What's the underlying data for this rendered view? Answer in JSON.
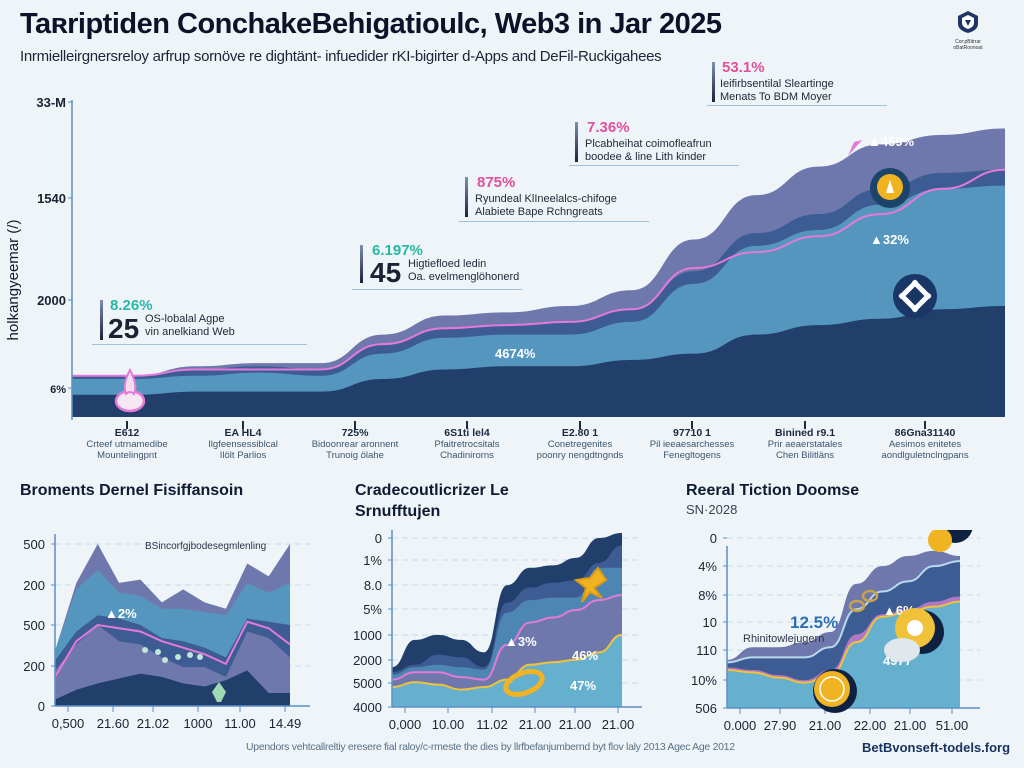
{
  "header": {
    "title": "Taʀriptiden ConchakeBehigatioulc, Web3 in Jar 2025",
    "subtitle": "Inrmielleirgnersreloy arfrup sornöve re dightänt- infuedider rKI-bigirter d-Apps and DeFil-Ruckigahees",
    "logo_icon": "shield-logo-icon",
    "logo_text_line1": "Cor:pBitrrar",
    "logo_text_line2": "oBatRoonoat"
  },
  "colors": {
    "navy": "#223f6c",
    "mid_blue": "#5596bf",
    "indigo": "#3d5c94",
    "purple": "#6f78ad",
    "pink_line": "#e47ad8",
    "yellow_line": "#f0c23a",
    "teal_text": "#27b8a6",
    "pink_text": "#e0509b"
  },
  "callouts": [
    {
      "pct": "8.26%",
      "pct_color": "#27b8a6",
      "big": "25",
      "line1": "OS-lobalal Agpe",
      "line2": "vin anelkiand Web"
    },
    {
      "pct": "6.197%",
      "pct_color": "#27b8a6",
      "big": "45",
      "line1": "Higtiefloed ledin",
      "line2": "Oa. evelmenglöhonerd"
    },
    {
      "pct": "875%",
      "pct_color": "#e0509b",
      "big": "",
      "line1": "Ryundeal KlIneelalcs-chifoge",
      "line2": "Alabiete Bape Rchngreats"
    },
    {
      "pct": "7.36%",
      "pct_color": "#e0509b",
      "big": "",
      "line1": "Plcabheihat coimofleafrun",
      "line2": "boodee & line Lith kinder"
    },
    {
      "pct": "53.1%",
      "pct_color": "#e0509b",
      "big": "",
      "line1": "Ieifirbsentilal Sleartinge",
      "line2": "Menats To BDM Moyer"
    }
  ],
  "chart_data": [
    {
      "type": "area",
      "title": "",
      "ylabel": "holkangyeemar (/)",
      "ytick_labels": [
        "33-M",
        "1540",
        "2000",
        "6%"
      ],
      "ylim": [
        0,
        100
      ],
      "grid": false,
      "x": [
        0,
        1,
        2,
        3,
        4,
        5,
        6,
        7,
        8,
        9,
        10,
        11,
        12,
        13,
        14,
        15
      ],
      "xtick_labels": [
        {
          "key": "E612",
          "line1": "Crteef utrnamedibe",
          "line2": "Mountelingpnt"
        },
        {
          "key": "EA HL4",
          "line1": "Ilgfeensessiblcal",
          "line2": "Ilölt Parlios"
        },
        {
          "key": "725%",
          "line1": "Bidoonrear aronnent",
          "line2": "Trunoig ölahe"
        },
        {
          "key": "6S1ti lel4",
          "line1": "Pfaitretrocsitals",
          "line2": "Chadinirorns"
        },
        {
          "key": "E2.80 1",
          "line1": "Conetregenites",
          "line2": "poonry nengdtngnds"
        },
        {
          "key": "97710 1",
          "line1": "Pil ieeaesarchesses",
          "line2": "Fenegltogens"
        },
        {
          "key": "Binined r9.1",
          "line1": "Prir aeaerstatales",
          "line2": "Chen Bilitläns"
        },
        {
          "key": "86Gna31140",
          "line1": "Aesimos enitetes",
          "line2": "aondlguletnclngpans"
        }
      ],
      "series": [
        {
          "name": "base",
          "color": "#223f6c",
          "values": [
            7,
            7,
            8,
            8,
            8,
            12,
            15,
            16,
            16,
            18,
            20,
            26,
            29,
            31,
            34,
            35
          ]
        },
        {
          "name": "mid",
          "color": "#5596bf",
          "values": [
            5,
            5,
            5,
            6,
            5,
            8,
            10,
            10,
            10,
            12,
            22,
            28,
            30,
            36,
            38,
            38
          ]
        },
        {
          "name": "indigo",
          "color": "#3d5c94",
          "values": [
            1,
            1,
            2,
            2,
            2,
            3,
            3,
            3,
            4,
            4,
            4,
            4,
            5,
            5,
            5,
            5
          ]
        },
        {
          "name": "top",
          "color": "#6f78ad",
          "values": [
            0,
            0,
            1,
            1,
            2,
            3,
            4,
            4,
            5,
            6,
            10,
            12,
            15,
            14,
            12,
            13
          ]
        }
      ],
      "trend_line": {
        "name": "pink-trend",
        "color": "#e47ad8",
        "values": [
          13,
          13,
          15,
          15,
          15,
          23,
          28,
          29,
          30,
          34,
          47,
          52,
          57,
          64,
          72,
          78
        ]
      },
      "annotations": [
        "4674%",
        "▲459%",
        "▲32%"
      ]
    },
    {
      "type": "area",
      "title": "Broments Dernel Fisiffansoin",
      "ytick_labels": [
        "0",
        "200",
        "500",
        "200",
        "500"
      ],
      "ylim": [
        0,
        500
      ],
      "xtick_labels": [
        "0,500",
        "21.60",
        "21.02",
        "1000",
        "11.00",
        "14.49"
      ],
      "grid": true,
      "legend_note": "BSincorfgjbodesegmlenling",
      "series": [
        {
          "name": "navy",
          "color": "#223f6c",
          "values": [
            20,
            50,
            70,
            85,
            100,
            90,
            70,
            60,
            80,
            110,
            40,
            40
          ]
        },
        {
          "name": "purple",
          "color": "#6f78ad",
          "values": [
            110,
            190,
            250,
            200,
            190,
            150,
            120,
            120,
            90,
            230,
            210,
            150
          ]
        },
        {
          "name": "indigo",
          "color": "#3d5c94",
          "values": [
            140,
            230,
            280,
            270,
            250,
            210,
            200,
            180,
            150,
            270,
            260,
            250
          ]
        },
        {
          "name": "blue",
          "color": "#5596bf",
          "values": [
            170,
            360,
            420,
            350,
            340,
            300,
            300,
            290,
            280,
            380,
            350,
            380
          ]
        },
        {
          "name": "top",
          "color": "#6f78ad",
          "values": [
            170,
            380,
            500,
            380,
            390,
            320,
            360,
            320,
            300,
            440,
            400,
            500
          ]
        }
      ],
      "line": {
        "name": "pink",
        "color": "#e47ad8",
        "values": [
          90,
          200,
          250,
          240,
          230,
          200,
          180,
          160,
          130,
          260,
          240,
          190
        ]
      },
      "annotations": [
        "▲2%"
      ]
    },
    {
      "type": "area",
      "title": "Cradecoutlicrizer Le Srnufftujen",
      "ytick_labels": [
        "0",
        "1%",
        "8.0",
        "5%",
        "1000",
        "2000",
        "5000",
        "4000"
      ],
      "ylim": [
        0,
        7
      ],
      "xtick_labels": [
        "0,000",
        "10.00",
        "11.02",
        "21.00",
        "21.00",
        "21.00"
      ],
      "grid": true,
      "series": [
        {
          "name": "teal",
          "color": "#66b0cf",
          "values": [
            0.8,
            1.0,
            0.9,
            0.7,
            0.8,
            1.1,
            1.7,
            1.8,
            1.9,
            2.2,
            2.9
          ]
        },
        {
          "name": "purple",
          "color": "#6f78ad",
          "values": [
            1.1,
            1.4,
            1.4,
            1.2,
            1.1,
            2.5,
            3.4,
            3.6,
            3.9,
            4.3,
            4.5
          ]
        },
        {
          "name": "blue",
          "color": "#4d86b3",
          "values": [
            1.3,
            1.6,
            1.7,
            1.6,
            1.5,
            3.8,
            4.3,
            4.4,
            4.4,
            5.6,
            5.6
          ]
        },
        {
          "name": "indigo",
          "color": "#3d5c94",
          "values": [
            1.4,
            1.7,
            2.1,
            2.0,
            1.6,
            4.2,
            4.8,
            5.0,
            5.1,
            5.8,
            6.5
          ]
        },
        {
          "name": "navy",
          "color": "#223f6c",
          "values": [
            1.6,
            2.7,
            2.9,
            2.7,
            2.2,
            4.9,
            5.6,
            5.7,
            6.0,
            6.8,
            7.0
          ]
        }
      ],
      "lines": [
        {
          "name": "yellow",
          "color": "#f0c23a",
          "values": [
            0.8,
            1.0,
            0.9,
            0.7,
            0.8,
            1.1,
            1.7,
            1.8,
            1.9,
            2.2,
            2.9
          ]
        },
        {
          "name": "pink",
          "color": "#e47ad8",
          "values": [
            1.1,
            1.4,
            1.4,
            1.2,
            1.1,
            2.5,
            3.4,
            3.6,
            3.9,
            4.3,
            4.5
          ]
        }
      ],
      "annotations": [
        "▲3%",
        "46%",
        "47%"
      ]
    },
    {
      "type": "area",
      "title": "Reeral Tiction Doomse",
      "subtitle": "SN·2028",
      "ytick_labels": [
        "0",
        "4%",
        "8%",
        "10",
        "110",
        "10%",
        "506"
      ],
      "ylim": [
        0,
        6
      ],
      "xtick_labels": [
        "0,000",
        "27.90",
        "21.00",
        "22.00",
        "21.00",
        "51.00"
      ],
      "grid": true,
      "series": [
        {
          "name": "teal",
          "color": "#66b0cf",
          "values": [
            1.5,
            1.4,
            1.2,
            1.0,
            1.3,
            2.6,
            3.6,
            3.8,
            4.0,
            4.2
          ]
        },
        {
          "name": "pink-band",
          "color": "#b077c7",
          "values": [
            1.6,
            1.5,
            1.3,
            1.1,
            1.5,
            2.9,
            3.7,
            3.9,
            4.2,
            4.4
          ]
        },
        {
          "name": "blue",
          "color": "#3d5c94",
          "values": [
            1.8,
            2.0,
            2.0,
            2.0,
            2.4,
            3.9,
            4.6,
            5.0,
            5.6,
            5.8
          ]
        },
        {
          "name": "purple",
          "color": "#6f78ad",
          "values": [
            1.9,
            2.4,
            2.4,
            2.6,
            3.0,
            4.9,
            5.6,
            6.0,
            6.2,
            6.0
          ]
        }
      ],
      "lines": [
        {
          "name": "yellow",
          "color": "#f0c23a",
          "values": [
            1.5,
            1.4,
            1.2,
            1.0,
            1.3,
            2.6,
            3.6,
            3.8,
            4.0,
            4.2
          ]
        },
        {
          "name": "light",
          "color": "#b9d9ec",
          "values": [
            1.8,
            2.0,
            2.0,
            2.0,
            2.4,
            3.9,
            4.6,
            5.0,
            5.6,
            5.8
          ]
        }
      ],
      "annotations": [
        "12.5%",
        "Rhinitowlejugern",
        "▲6%",
        "4977"
      ]
    }
  ],
  "footer": {
    "note": "Upendors vehtcallreltiy eresere fial raloy/c-rmeste the dies by llrfbefanjumbernd byt flov laly 2013 Agec Age 2012",
    "site": "BetBvonseft-todels.forg"
  }
}
